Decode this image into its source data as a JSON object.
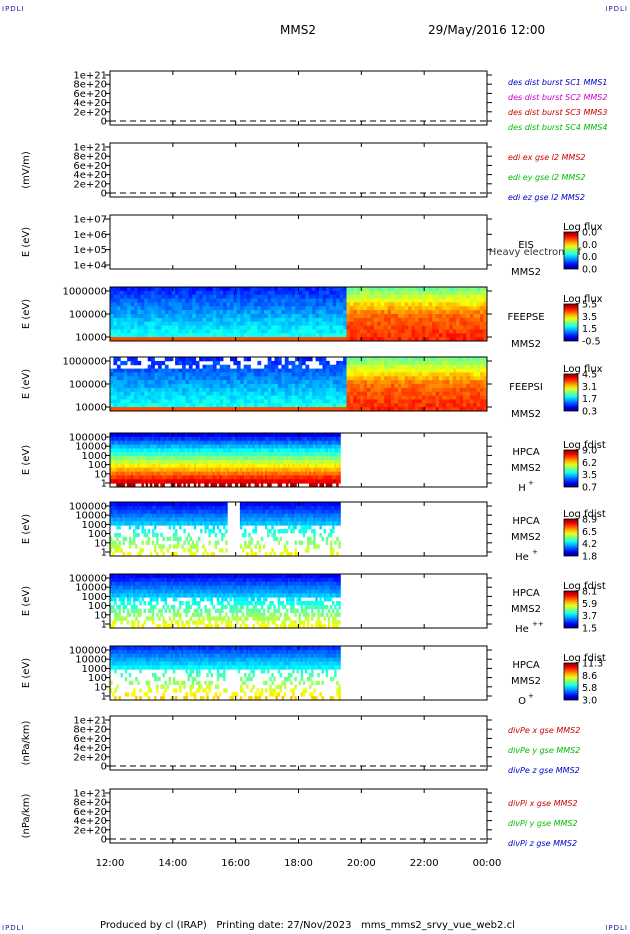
{
  "corner_label": "IPDLI",
  "header": {
    "spacecraft": "MMS2",
    "datetime": "29/May/2016 12:00"
  },
  "footer": {
    "text": "Produced by cl (IRAP)   Printing date: 27/Nov/2023   mms_mms2_srvy_vue_web2.cl"
  },
  "time_axis": {
    "ticks": [
      "12:00",
      "14:00",
      "16:00",
      "18:00",
      "20:00",
      "22:00",
      "00:00"
    ]
  },
  "chart_data": [
    {
      "type": "line",
      "ylabel": "",
      "yticks": [
        "1e+21",
        "8e+20",
        "6e+20",
        "4e+20",
        "2e+20",
        "0"
      ],
      "legend": [
        {
          "text": "des dist burst SC1 MMS1",
          "color": "#0000cc"
        },
        {
          "text": "des dist burst SC2 MMS2",
          "color": "#cc00cc"
        },
        {
          "text": "des dist burst SC3 MMS3",
          "color": "#cc0000"
        },
        {
          "text": "des dist burst SC4 MMS4",
          "color": "#00bb00"
        }
      ]
    },
    {
      "type": "line",
      "ylabel": "(mV/m)",
      "yticks": [
        "1e+21",
        "8e+20",
        "6e+20",
        "4e+20",
        "2e+20",
        "0"
      ],
      "legend": [
        {
          "text": "edi ex gse l2 MMS2",
          "color": "#cc0000"
        },
        {
          "text": "edi ey gse l2 MMS2",
          "color": "#00bb00"
        },
        {
          "text": "edi ez gse l2 MMS2",
          "color": "#0000cc"
        }
      ]
    },
    {
      "type": "heatmap",
      "ylabel": "E (eV)",
      "yticks": [
        "1e+07",
        "1e+06",
        "1e+05",
        "1e+04"
      ],
      "instrument": "EIS",
      "spacecraft": "MMS2",
      "overlay": "Heavy electron tof",
      "cbar_title": "Log flux",
      "cbar_ticks": [
        "0.0",
        "0.0",
        "0.0",
        "0.0"
      ],
      "filled": false
    },
    {
      "type": "heatmap",
      "ylabel": "E (eV)",
      "yticks": [
        "1000000",
        "100000",
        "10000"
      ],
      "instrument": "FEEPSE",
      "spacecraft": "MMS2",
      "cbar_title": "Log flux",
      "cbar_ticks": [
        "5.5",
        "3.5",
        "1.5",
        "-0.5"
      ],
      "filled": true,
      "data_end": "00:00",
      "hot_after": "19:30"
    },
    {
      "type": "heatmap",
      "ylabel": "E (eV)",
      "yticks": [
        "1000000",
        "100000",
        "10000"
      ],
      "instrument": "FEEPSI",
      "spacecraft": "MMS2",
      "cbar_title": "Log flux",
      "cbar_ticks": [
        "4.5",
        "3.1",
        "1.7",
        "0.3"
      ],
      "filled": true,
      "data_end": "00:00",
      "hot_after": "19:30"
    },
    {
      "type": "heatmap",
      "ylabel": "E (eV)",
      "yticks": [
        "100000",
        "10000",
        "1000",
        "100",
        "10",
        "1"
      ],
      "instrument": "HPCA",
      "spacecraft": "MMS2",
      "species": "H",
      "charge": "+",
      "cbar_title": "Log fdist",
      "cbar_ticks": [
        "9.0",
        "6.2",
        "3.5",
        "0.7"
      ],
      "filled": true,
      "data_end": "19:20"
    },
    {
      "type": "heatmap",
      "ylabel": "E (eV)",
      "yticks": [
        "100000",
        "10000",
        "1000",
        "100",
        "10",
        "1"
      ],
      "instrument": "HPCA",
      "spacecraft": "MMS2",
      "species": "He",
      "charge": "+",
      "cbar_title": "Log fdist",
      "cbar_ticks": [
        "8.9",
        "6.5",
        "4.2",
        "1.8"
      ],
      "filled": true,
      "data_end": "19:20"
    },
    {
      "type": "heatmap",
      "ylabel": "E (eV)",
      "yticks": [
        "100000",
        "10000",
        "1000",
        "100",
        "10",
        "1"
      ],
      "instrument": "HPCA",
      "spacecraft": "MMS2",
      "species": "He",
      "charge": "++",
      "cbar_title": "Log fdist",
      "cbar_ticks": [
        "8.1",
        "5.9",
        "3.7",
        "1.5"
      ],
      "filled": true,
      "data_end": "19:20"
    },
    {
      "type": "heatmap",
      "ylabel": "E (eV)",
      "yticks": [
        "100000",
        "10000",
        "1000",
        "100",
        "10",
        "1"
      ],
      "instrument": "HPCA",
      "spacecraft": "MMS2",
      "species": "O",
      "charge": "+",
      "cbar_title": "Log fdist",
      "cbar_ticks": [
        "11.3",
        "8.6",
        "5.8",
        "3.0"
      ],
      "filled": true,
      "data_end": "19:20"
    },
    {
      "type": "line",
      "ylabel": "(nPa/km)",
      "yticks": [
        "1e+21",
        "8e+20",
        "6e+20",
        "4e+20",
        "2e+20",
        "0"
      ],
      "legend": [
        {
          "text": "divPe x gse MMS2",
          "color": "#cc0000"
        },
        {
          "text": "divPe y gse MMS2",
          "color": "#00bb00"
        },
        {
          "text": "divPe z gse MMS2",
          "color": "#0000cc"
        }
      ]
    },
    {
      "type": "line",
      "ylabel": "(nPa/km)",
      "yticks": [
        "1e+21",
        "8e+20",
        "6e+20",
        "4e+20",
        "2e+20",
        "0"
      ],
      "legend": [
        {
          "text": "divPi x gse MMS2",
          "color": "#cc0000"
        },
        {
          "text": "divPi y gse MMS2",
          "color": "#00bb00"
        },
        {
          "text": "divPi z gse MMS2",
          "color": "#0000cc"
        }
      ]
    }
  ]
}
